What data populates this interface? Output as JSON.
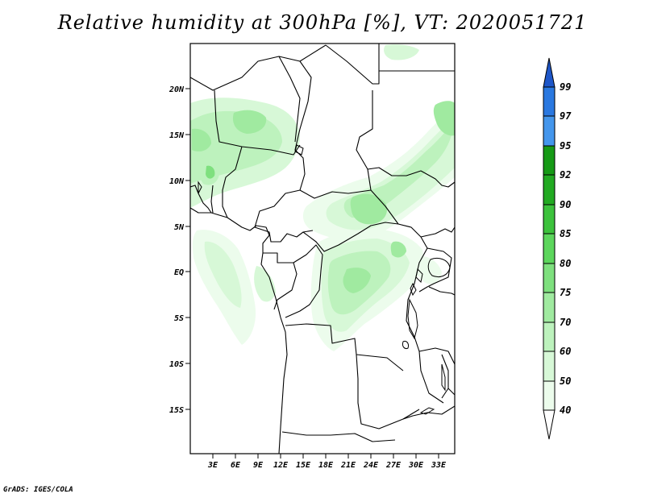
{
  "title": "Relative humidity at 300hPa [%], VT: 2020051721",
  "credit": "GrADS: IGES/COLA",
  "map": {
    "lat_labels": [
      "20N",
      "15N",
      "10N",
      "5N",
      "EQ",
      "5S",
      "10S",
      "15S"
    ],
    "lon_labels": [
      "3E",
      "6E",
      "9E",
      "12E",
      "15E",
      "18E",
      "21E",
      "24E",
      "27E",
      "30E",
      "33E"
    ]
  },
  "colorbar": {
    "labels": [
      "99",
      "97",
      "95",
      "92",
      "90",
      "85",
      "80",
      "75",
      "70",
      "60",
      "50",
      "40"
    ],
    "colors": {
      "above_99": "#1e56c8",
      "97_99": "#2a78e0",
      "95_97": "#4496ec",
      "92_95": "#169a16",
      "90_92": "#22aa22",
      "85_90": "#3cc23c",
      "80_85": "#5cd65c",
      "75_80": "#7ee07e",
      "70_75": "#a0eaa0",
      "60_70": "#bdf2bd",
      "50_60": "#d7f8d7",
      "40_50": "#ecfcec",
      "below_40": "#ffffff"
    }
  }
}
